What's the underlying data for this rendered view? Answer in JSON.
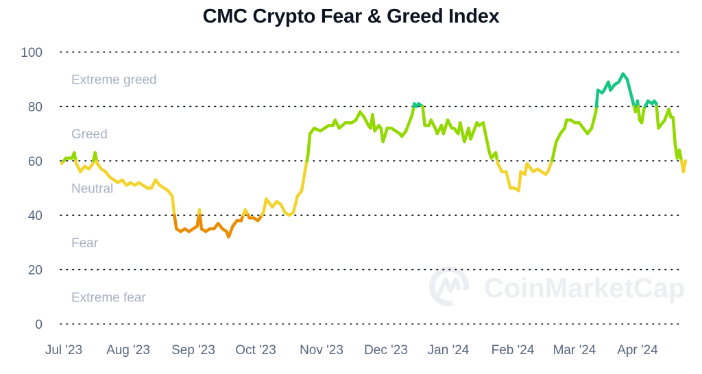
{
  "title": "CMC Crypto Fear & Greed Index",
  "watermark": "CoinMarketCap",
  "colors": {
    "extreme_greed": "#16c784",
    "greed": "#93d900",
    "neutral": "#f3d42f",
    "fear": "#ea8c00",
    "extreme_fear": "#ea3943",
    "axis_text": "#58667e",
    "zone_text": "#a6b0c3",
    "grid": "#0d1421"
  },
  "chart_data": {
    "type": "line",
    "title": "CMC Crypto Fear & Greed Index",
    "xlabel": "",
    "ylabel": "",
    "ylim": [
      0,
      100
    ],
    "yticks": [
      0,
      20,
      40,
      60,
      80,
      100
    ],
    "xticks": [
      "Jul '23",
      "Aug '23",
      "Sep '23",
      "Oct '23",
      "Nov '23",
      "Dec '23",
      "Jan '24",
      "Feb '24",
      "Mar '24",
      "Apr '24"
    ],
    "grid": "horizontal-dotted",
    "legend": "none",
    "zones": [
      {
        "label": "Extreme greed",
        "range": [
          80,
          100
        ]
      },
      {
        "label": "Greed",
        "range": [
          60,
          80
        ]
      },
      {
        "label": "Neutral",
        "range": [
          40,
          60
        ]
      },
      {
        "label": "Fear",
        "range": [
          20,
          40
        ]
      },
      {
        "label": "Extreme fear",
        "range": [
          0,
          20
        ]
      }
    ],
    "series": [
      {
        "name": "Fear & Greed Index",
        "points": [
          [
            "2023-07-01",
            59
          ],
          [
            "2023-07-03",
            61
          ],
          [
            "2023-07-06",
            61
          ],
          [
            "2023-07-07",
            63
          ],
          [
            "2023-07-08",
            59
          ],
          [
            "2023-07-10",
            56
          ],
          [
            "2023-07-12",
            58
          ],
          [
            "2023-07-14",
            57
          ],
          [
            "2023-07-16",
            59
          ],
          [
            "2023-07-17",
            63
          ],
          [
            "2023-07-18",
            59
          ],
          [
            "2023-07-20",
            57
          ],
          [
            "2023-07-22",
            56
          ],
          [
            "2023-07-24",
            54
          ],
          [
            "2023-07-26",
            53
          ],
          [
            "2023-07-28",
            52
          ],
          [
            "2023-07-30",
            53
          ],
          [
            "2023-08-01",
            51
          ],
          [
            "2023-08-03",
            52
          ],
          [
            "2023-08-05",
            51
          ],
          [
            "2023-08-07",
            52
          ],
          [
            "2023-08-09",
            51
          ],
          [
            "2023-08-11",
            50
          ],
          [
            "2023-08-13",
            50
          ],
          [
            "2023-08-15",
            53
          ],
          [
            "2023-08-17",
            51
          ],
          [
            "2023-08-19",
            50
          ],
          [
            "2023-08-21",
            49
          ],
          [
            "2023-08-23",
            47
          ],
          [
            "2023-08-24",
            40
          ],
          [
            "2023-08-25",
            35
          ],
          [
            "2023-08-27",
            34
          ],
          [
            "2023-08-29",
            35
          ],
          [
            "2023-08-31",
            34
          ],
          [
            "2023-09-02",
            35
          ],
          [
            "2023-09-04",
            36
          ],
          [
            "2023-09-05",
            42
          ],
          [
            "2023-09-06",
            35
          ],
          [
            "2023-09-08",
            34
          ],
          [
            "2023-09-10",
            35
          ],
          [
            "2023-09-12",
            35
          ],
          [
            "2023-09-14",
            37
          ],
          [
            "2023-09-16",
            35
          ],
          [
            "2023-09-18",
            34
          ],
          [
            "2023-09-19",
            32
          ],
          [
            "2023-09-21",
            36
          ],
          [
            "2023-09-23",
            38
          ],
          [
            "2023-09-25",
            38
          ],
          [
            "2023-09-27",
            42
          ],
          [
            "2023-09-29",
            39
          ],
          [
            "2023-10-01",
            39
          ],
          [
            "2023-10-03",
            38
          ],
          [
            "2023-10-05",
            40
          ],
          [
            "2023-10-06",
            42
          ],
          [
            "2023-10-07",
            46
          ],
          [
            "2023-10-09",
            44
          ],
          [
            "2023-10-10",
            43
          ],
          [
            "2023-10-12",
            45
          ],
          [
            "2023-10-14",
            44
          ],
          [
            "2023-10-16",
            41
          ],
          [
            "2023-10-18",
            40
          ],
          [
            "2023-10-20",
            41
          ],
          [
            "2023-10-22",
            47
          ],
          [
            "2023-10-24",
            49
          ],
          [
            "2023-10-26",
            58
          ],
          [
            "2023-10-27",
            62
          ],
          [
            "2023-10-28",
            70
          ],
          [
            "2023-10-30",
            72
          ],
          [
            "2023-11-02",
            71
          ],
          [
            "2023-11-04",
            72
          ],
          [
            "2023-11-06",
            73
          ],
          [
            "2023-11-08",
            73
          ],
          [
            "2023-11-09",
            75
          ],
          [
            "2023-11-11",
            72
          ],
          [
            "2023-11-14",
            74
          ],
          [
            "2023-11-17",
            74
          ],
          [
            "2023-11-19",
            75
          ],
          [
            "2023-11-21",
            78
          ],
          [
            "2023-11-23",
            76
          ],
          [
            "2023-11-25",
            73
          ],
          [
            "2023-11-26",
            72
          ],
          [
            "2023-11-27",
            77
          ],
          [
            "2023-11-28",
            71
          ],
          [
            "2023-11-30",
            73
          ],
          [
            "2023-12-01",
            72
          ],
          [
            "2023-12-02",
            67
          ],
          [
            "2023-12-04",
            72
          ],
          [
            "2023-12-06",
            72
          ],
          [
            "2023-12-08",
            71
          ],
          [
            "2023-12-10",
            70
          ],
          [
            "2023-12-11",
            69
          ],
          [
            "2023-12-13",
            71
          ],
          [
            "2023-12-15",
            75
          ],
          [
            "2023-12-16",
            77
          ],
          [
            "2023-12-17",
            81
          ],
          [
            "2023-12-18",
            80
          ],
          [
            "2023-12-19",
            81
          ],
          [
            "2023-12-21",
            80
          ],
          [
            "2023-12-22",
            73
          ],
          [
            "2023-12-24",
            73
          ],
          [
            "2023-12-25",
            75
          ],
          [
            "2023-12-27",
            72
          ],
          [
            "2023-12-28",
            70
          ],
          [
            "2023-12-30",
            73
          ],
          [
            "2023-12-31",
            70
          ],
          [
            "2024-01-02",
            75
          ],
          [
            "2024-01-04",
            72
          ],
          [
            "2024-01-05",
            72
          ],
          [
            "2024-01-07",
            70
          ],
          [
            "2024-01-08",
            74
          ],
          [
            "2024-01-10",
            67
          ],
          [
            "2024-01-12",
            72
          ],
          [
            "2024-01-13",
            68
          ],
          [
            "2024-01-16",
            74
          ],
          [
            "2024-01-17",
            73
          ],
          [
            "2024-01-19",
            74
          ],
          [
            "2024-01-22",
            63
          ],
          [
            "2024-01-23",
            61
          ],
          [
            "2024-01-25",
            63
          ],
          [
            "2024-01-26",
            59
          ],
          [
            "2024-01-28",
            56
          ],
          [
            "2024-01-30",
            56
          ],
          [
            "2024-02-01",
            50
          ],
          [
            "2024-02-03",
            50
          ],
          [
            "2024-02-05",
            49
          ],
          [
            "2024-02-06",
            56
          ],
          [
            "2024-02-08",
            55
          ],
          [
            "2024-02-09",
            59
          ],
          [
            "2024-02-11",
            57
          ],
          [
            "2024-02-12",
            56
          ],
          [
            "2024-02-14",
            57
          ],
          [
            "2024-02-16",
            56
          ],
          [
            "2024-02-18",
            55
          ],
          [
            "2024-02-19",
            56
          ],
          [
            "2024-02-21",
            60
          ],
          [
            "2024-02-23",
            67
          ],
          [
            "2024-02-25",
            70
          ],
          [
            "2024-02-27",
            72
          ],
          [
            "2024-02-28",
            75
          ],
          [
            "2024-03-01",
            75
          ],
          [
            "2024-03-03",
            74
          ],
          [
            "2024-03-05",
            74
          ],
          [
            "2024-03-07",
            72
          ],
          [
            "2024-03-09",
            70
          ],
          [
            "2024-03-11",
            72
          ],
          [
            "2024-03-13",
            78
          ],
          [
            "2024-03-14",
            86
          ],
          [
            "2024-03-16",
            85
          ],
          [
            "2024-03-17",
            86
          ],
          [
            "2024-03-19",
            89
          ],
          [
            "2024-03-20",
            86
          ],
          [
            "2024-03-22",
            88
          ],
          [
            "2024-03-24",
            89
          ],
          [
            "2024-03-26",
            92
          ],
          [
            "2024-03-28",
            90
          ],
          [
            "2024-03-30",
            84
          ],
          [
            "2024-03-31",
            81
          ],
          [
            "2024-04-01",
            78
          ],
          [
            "2024-04-02",
            82
          ],
          [
            "2024-04-03",
            75
          ],
          [
            "2024-04-04",
            74
          ],
          [
            "2024-04-05",
            79
          ],
          [
            "2024-04-07",
            82
          ],
          [
            "2024-04-09",
            81
          ],
          [
            "2024-04-10",
            82
          ],
          [
            "2024-04-11",
            81
          ],
          [
            "2024-04-12",
            72
          ],
          [
            "2024-04-13",
            73
          ],
          [
            "2024-04-15",
            75
          ],
          [
            "2024-04-17",
            79
          ],
          [
            "2024-04-18",
            76
          ],
          [
            "2024-04-19",
            76
          ],
          [
            "2024-04-20",
            66
          ],
          [
            "2024-04-21",
            61
          ],
          [
            "2024-04-22",
            64
          ],
          [
            "2024-04-23",
            60
          ],
          [
            "2024-04-24",
            56
          ],
          [
            "2024-04-25",
            60
          ]
        ]
      }
    ]
  }
}
